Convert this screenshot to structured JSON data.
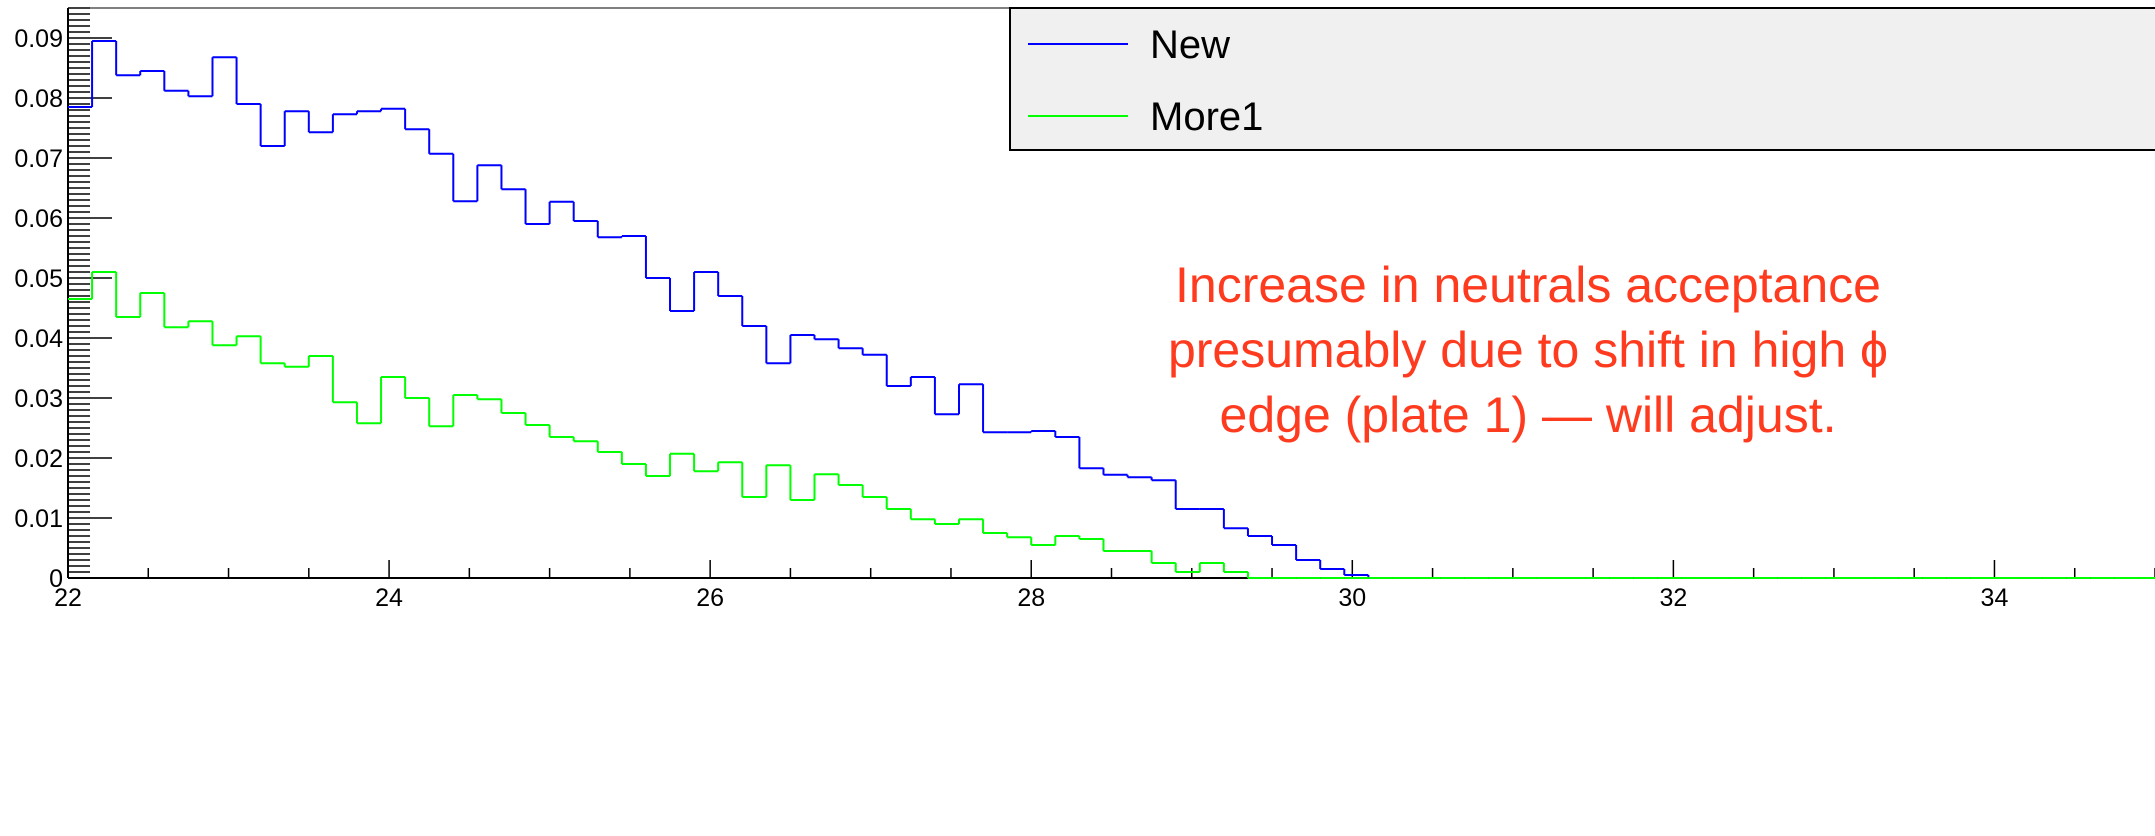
{
  "chart_data": {
    "type": "line",
    "title": "",
    "xlabel": "",
    "ylabel": "",
    "xlim": [
      22,
      35
    ],
    "ylim": [
      0,
      0.095
    ],
    "x_ticks": [
      "22",
      "24",
      "26",
      "28",
      "30",
      "32",
      "34"
    ],
    "y_ticks": [
      "0",
      "0.01",
      "0.02",
      "0.03",
      "0.04",
      "0.05",
      "0.06",
      "0.07",
      "0.08",
      "0.09"
    ],
    "bin_edges_start": 22.0,
    "bin_width": 0.15,
    "grid": false,
    "legend_position": "top-right",
    "series": [
      {
        "name": "New",
        "color": "#0000ff",
        "values": [
          0.0785,
          0.0895,
          0.0838,
          0.0845,
          0.0812,
          0.0803,
          0.0868,
          0.079,
          0.072,
          0.0778,
          0.0743,
          0.0773,
          0.0778,
          0.0782,
          0.0748,
          0.0707,
          0.0628,
          0.0688,
          0.0648,
          0.059,
          0.0627,
          0.0595,
          0.0568,
          0.057,
          0.05,
          0.0445,
          0.051,
          0.047,
          0.042,
          0.0358,
          0.0405,
          0.0398,
          0.0383,
          0.0372,
          0.032,
          0.0335,
          0.0273,
          0.0323,
          0.0243,
          0.0243,
          0.0245,
          0.0235,
          0.0183,
          0.0172,
          0.0168,
          0.0163,
          0.0115,
          0.0115,
          0.0083,
          0.007,
          0.0055,
          0.003,
          0.0015,
          0.0005,
          0,
          0,
          0,
          0,
          0,
          0,
          0,
          0,
          0,
          0,
          0,
          0,
          0,
          0,
          0,
          0,
          0,
          0,
          0,
          0,
          0,
          0,
          0,
          0,
          0,
          0,
          0,
          0,
          0,
          0,
          0,
          0,
          0
        ]
      },
      {
        "name": "More1",
        "color": "#00ff00",
        "values": [
          0.0465,
          0.051,
          0.0435,
          0.0475,
          0.0418,
          0.0428,
          0.0388,
          0.0403,
          0.0358,
          0.0352,
          0.037,
          0.0293,
          0.0258,
          0.0335,
          0.03,
          0.0253,
          0.0305,
          0.0298,
          0.0275,
          0.0255,
          0.0235,
          0.0228,
          0.021,
          0.019,
          0.017,
          0.0207,
          0.0178,
          0.0193,
          0.0135,
          0.0188,
          0.013,
          0.0173,
          0.0155,
          0.0135,
          0.0115,
          0.0098,
          0.009,
          0.0098,
          0.0075,
          0.0068,
          0.0055,
          0.007,
          0.0065,
          0.0045,
          0.0045,
          0.0025,
          0.001,
          0.0025,
          0.001,
          0,
          0,
          0,
          0,
          0,
          0,
          0,
          0,
          0,
          0,
          0,
          0,
          0,
          0,
          0,
          0,
          0,
          0,
          0,
          0,
          0,
          0,
          0,
          0,
          0,
          0,
          0,
          0,
          0,
          0,
          0,
          0,
          0,
          0,
          0,
          0,
          0,
          0
        ]
      }
    ],
    "legend": {
      "entries": [
        "New",
        "More1"
      ]
    },
    "annotation": {
      "lines": [
        "Increase in neutrals acceptance",
        "presumably due to shift in high ϕ",
        "edge (plate 1) — will adjust."
      ],
      "color": "#ff3b1f"
    }
  }
}
